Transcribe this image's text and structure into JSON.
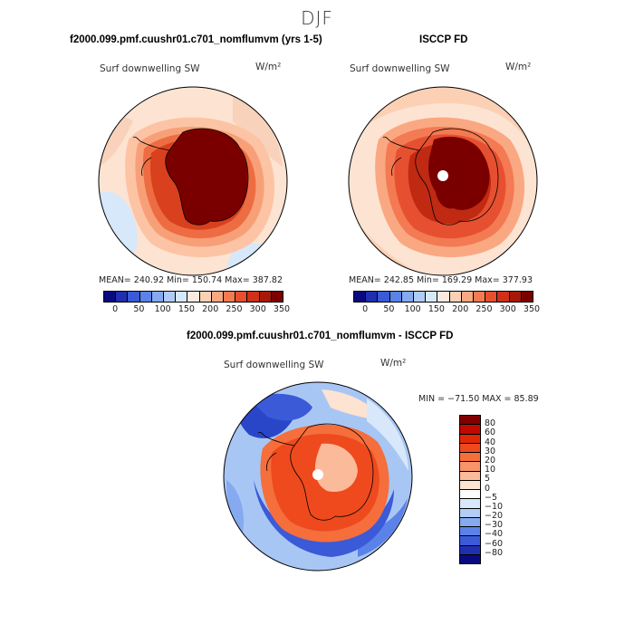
{
  "figure_title": "DJF",
  "panels": {
    "top_left": {
      "title": "f2000.099.pmf.cuushr01.c701_nomflumvm (yrs 1-5)",
      "field": "Surf downwelling SW",
      "units": "W/m²",
      "stats": "MEAN= 240.92   Min= 150.74   Max= 387.82"
    },
    "top_right": {
      "title": "ISCCP FD",
      "field": "Surf downwelling SW",
      "units": "W/m²",
      "stats": "MEAN= 242.85   Min= 169.29   Max= 377.93"
    },
    "bottom": {
      "title": "f2000.099.pmf.cuushr01.c701_nomflumvm - ISCCP FD",
      "field": "Surf downwelling SW",
      "units": "W/m²",
      "stats": "MIN = −71.50  MAX =  85.89"
    }
  },
  "colorbar_top": {
    "ticks": [
      "0",
      "50",
      "100",
      "150",
      "200",
      "250",
      "300",
      "350"
    ],
    "colors": [
      "#0a0a80",
      "#1f2fb0",
      "#3a5ad8",
      "#5a82e8",
      "#86aaf0",
      "#b0ccf6",
      "#d6e8fa",
      "#fde8de",
      "#fcd0b4",
      "#f9a882",
      "#f37a52",
      "#e65030",
      "#d0301a",
      "#a81808",
      "#7a0000"
    ]
  },
  "colorbar_diff": {
    "labels": [
      "80",
      "60",
      "40",
      "30",
      "20",
      "10",
      "5",
      "0",
      "−5",
      "−10",
      "−20",
      "−30",
      "−40",
      "−60",
      "−80"
    ],
    "colors": [
      "#800000",
      "#c00a00",
      "#e02808",
      "#ee4a1e",
      "#f56e3c",
      "#f99468",
      "#fbbb9a",
      "#fde3d2",
      "#fbfbfb",
      "#d8e8fa",
      "#b2cdf6",
      "#86aaf0",
      "#5a82e8",
      "#3a5ad8",
      "#1f2fb0",
      "#0a0a80"
    ]
  }
}
